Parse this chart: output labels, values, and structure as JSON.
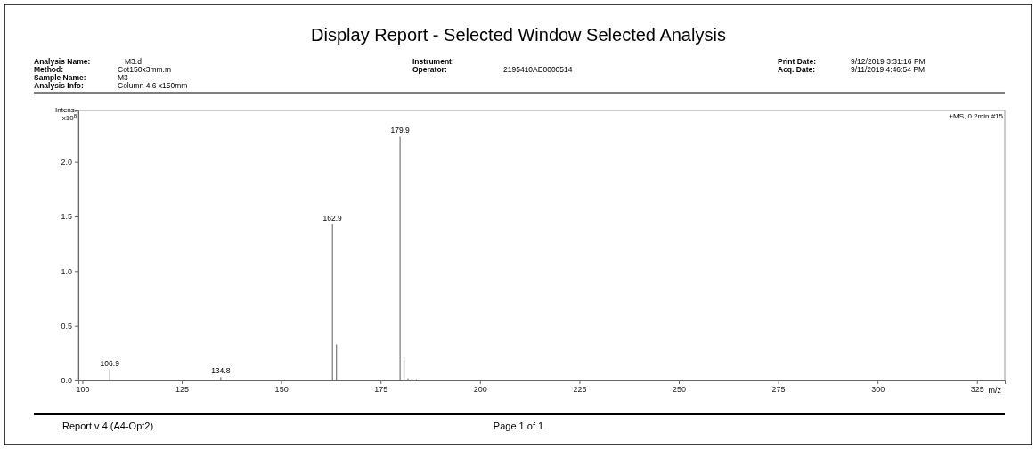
{
  "chart_data": {
    "type": "bar",
    "title": "Display Report - Selected Window Selected Analysis",
    "xlabel": "m/z",
    "ylabel": "Intens.\nx10$^{8}$",
    "x": [
      106.9,
      134.8,
      162.9,
      163.9,
      179.9,
      180.9,
      181.9,
      182.9,
      184.0
    ],
    "series": [
      {
        "color": "#7a7a7a",
        "values": [
          0.1,
          0.03,
          1.43,
          0.33,
          2.23,
          0.21,
          0.02,
          0.02,
          0.01
        ]
      }
    ],
    "xlim": [
      99,
      332
    ],
    "xticks": [
      100,
      125,
      150,
      175,
      200,
      225,
      250,
      275,
      300,
      325
    ],
    "ylim": [
      0,
      2.47
    ],
    "yticks": [
      {
        "value": 0,
        "label": "0.0"
      },
      {
        "value": 0.5,
        "label": "0.5"
      },
      {
        "value": 1,
        "label": "1.0"
      },
      {
        "value": 1.5,
        "label": "1.5"
      },
      {
        "value": 2,
        "label": "2.0"
      }
    ],
    "grid": false,
    "annotations": [
      "Analysis Name:",
      "M3.d",
      "Method:",
      "Cot150x3mm.m",
      "Sample Name:",
      "M3",
      "Analysis Info:",
      "Column 4.6 x150mm",
      "Instrument:",
      "Operator:",
      "2195410AE0000514",
      "Print Date:",
      "9/12/2019  3:31:16 PM",
      "Acq. Date:",
      "9/11/2019 4:46:54 PM",
      "+MS, 0.2min #15",
      "Report v 4 (A4-Opt2)",
      "Page  1 of 1",
      {
        "text": "106.9",
        "x": 106.9,
        "y": 0.1
      },
      {
        "text": "134.8",
        "x": 134.8,
        "y": 0.03
      },
      {
        "text": "162.9",
        "x": 162.9,
        "y": 1.43
      },
      {
        "text": "179.9",
        "x": 179.9,
        "y": 2.23
      }
    ]
  }
}
